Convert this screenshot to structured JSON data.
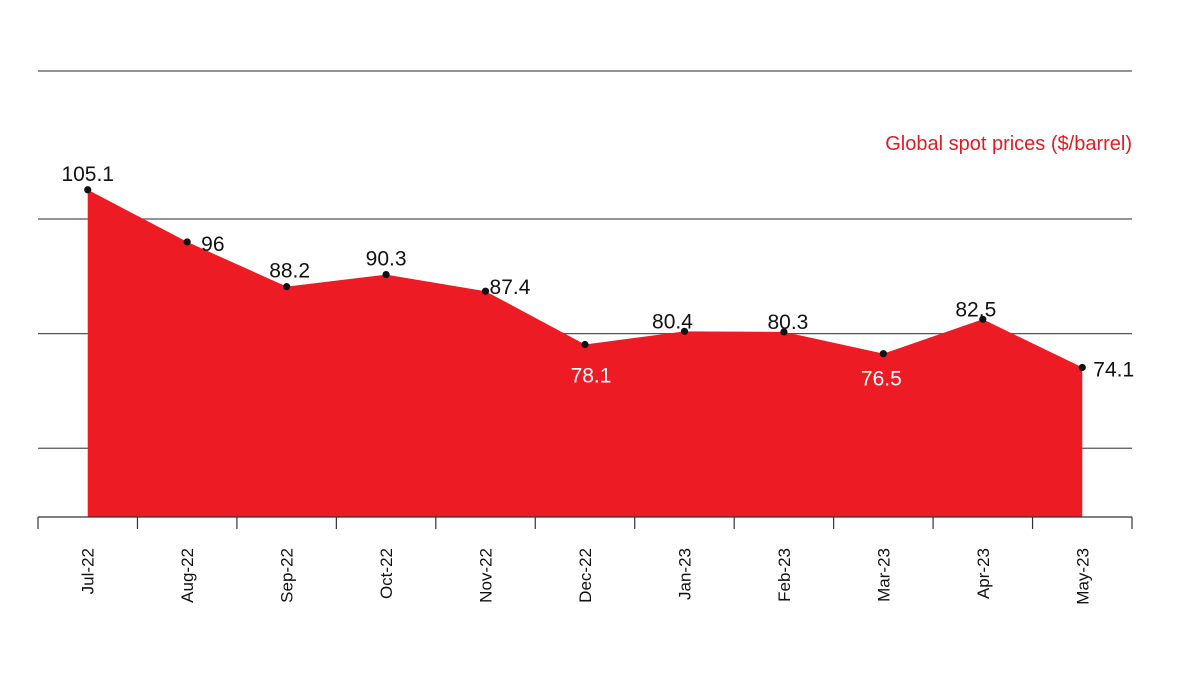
{
  "chart_data": {
    "type": "area",
    "title": "Global spot prices ($/barrel)",
    "categories": [
      "Jul-22",
      "Aug-22",
      "Sep-22",
      "Oct-22",
      "Nov-22",
      "Dec-22",
      "Jan-23",
      "Feb-23",
      "Mar-23",
      "Apr-23",
      "May-23"
    ],
    "series": [
      {
        "values": [
          105.1,
          96,
          88.2,
          90.3,
          87.4,
          78.1,
          80.4,
          80.3,
          76.5,
          82.5,
          74.1
        ]
      }
    ],
    "data_labels": [
      "105.1",
      "96",
      "88.2",
      "90.3",
      "87.4",
      "78.1",
      "80.4",
      "80.3",
      "76.5",
      "82.5",
      "74.1"
    ],
    "ylim": [
      48,
      108
    ],
    "gridlines": [
      60,
      80,
      100
    ],
    "grid": true,
    "tick_labels_y": false,
    "legend": "none",
    "colors": {
      "fill": "#ed1c24",
      "title": "#e41b23",
      "grid": "#555555",
      "marker": "#111111"
    }
  }
}
